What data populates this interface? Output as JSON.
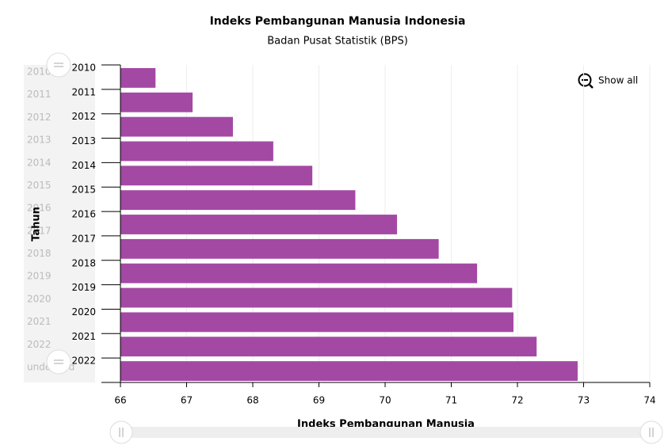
{
  "chart_data": {
    "type": "bar",
    "orientation": "horizontal",
    "title": "Indeks Pembangunan Manusia Indonesia",
    "subtitle": "Badan Pusat Statistik (BPS)",
    "x_label": "Indeks Pembangunan Manusia",
    "y_label": "Tahun",
    "categories": [
      "2010",
      "2011",
      "2012",
      "2013",
      "2014",
      "2015",
      "2016",
      "2017",
      "2018",
      "2019",
      "2020",
      "2021",
      "2022"
    ],
    "values": [
      66.53,
      67.09,
      67.7,
      68.31,
      68.9,
      69.55,
      70.18,
      70.81,
      71.39,
      71.92,
      71.94,
      72.29,
      72.91
    ],
    "color": "#a349a4",
    "xlim": [
      66,
      74
    ],
    "xticks": [
      66,
      67,
      68,
      69,
      70,
      71,
      72,
      73,
      74
    ],
    "grid": true,
    "navigator_labels": [
      "2010",
      "2011",
      "2012",
      "2013",
      "2014",
      "2015",
      "2016",
      "2017",
      "2018",
      "2019",
      "2020",
      "2021",
      "2022",
      "undefined"
    ],
    "reset_button": "Show all"
  }
}
